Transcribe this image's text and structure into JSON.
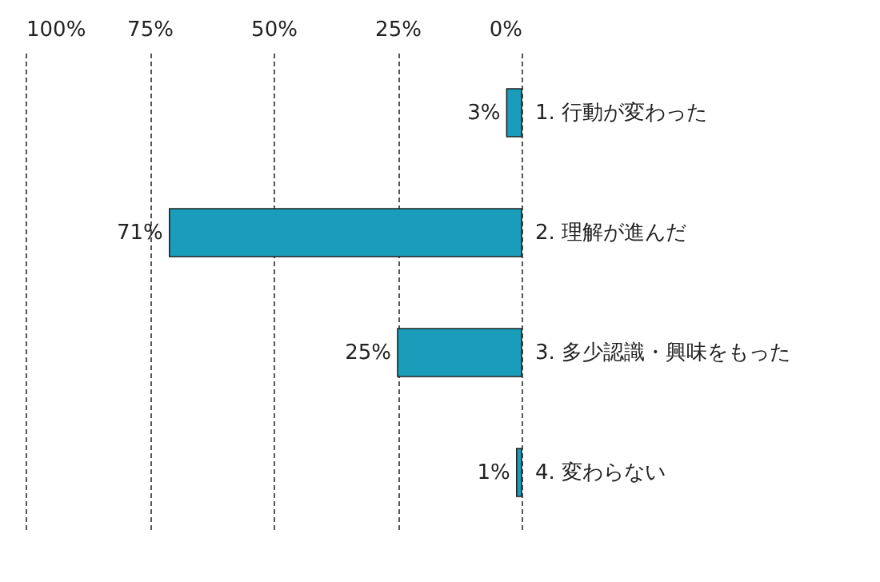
{
  "chart_data": {
    "type": "bar",
    "orientation": "horizontal",
    "categories": [
      "1. 行動が変わった",
      "2. 理解が進んだ",
      "3. 多少認識・興味をもった",
      "4. 変わらない"
    ],
    "values": [
      3,
      71,
      25,
      1
    ],
    "value_labels": [
      "3%",
      "71%",
      "25%",
      "1%"
    ],
    "color": "#1a9dba",
    "xlim": [
      100,
      0
    ],
    "xticks": [
      {
        "value": 100,
        "label": "100%"
      },
      {
        "value": 75,
        "label": "75%"
      },
      {
        "value": 50,
        "label": "50%"
      },
      {
        "value": 25,
        "label": "25%"
      },
      {
        "value": 0,
        "label": "0%"
      }
    ],
    "grid": "x"
  }
}
